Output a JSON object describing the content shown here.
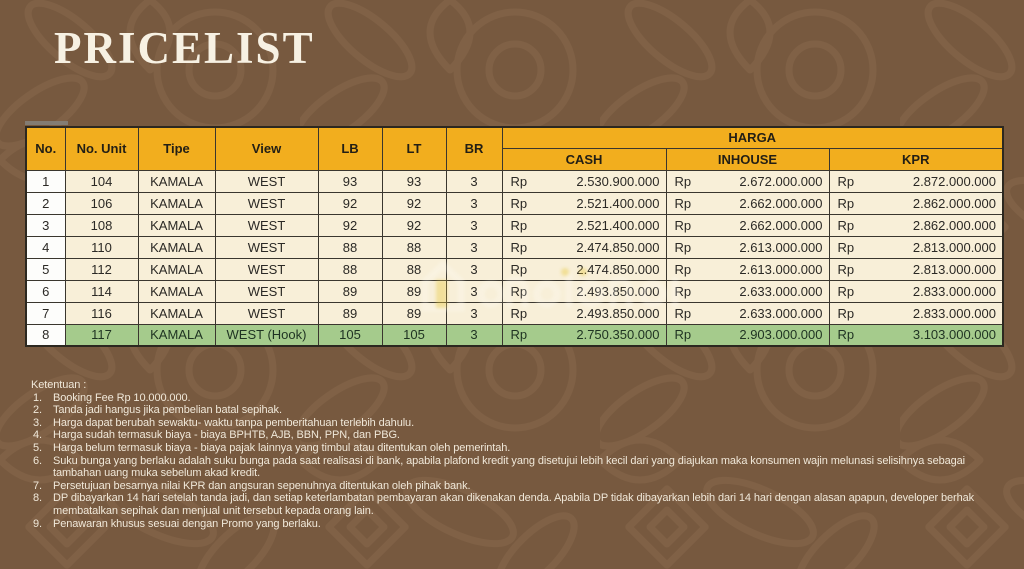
{
  "title": "PRICELIST",
  "colors": {
    "background_brown": "#77593F",
    "pattern_stroke": "#8D6D4F",
    "header_yellow": "#F2AE1E",
    "row_cream": "#F8EFD8",
    "row_white": "#FDFDFB",
    "highlight_green": "#A5CB8C",
    "table_border": "#3A362E",
    "title_text": "#F7F1E3",
    "notes_text": "#F0E8D9"
  },
  "table": {
    "headers": {
      "no": "No.",
      "no_unit": "No. Unit",
      "tipe": "Tipe",
      "view": "View",
      "lb": "LB",
      "lt": "LT",
      "br": "BR",
      "harga": "HARGA",
      "cash": "CASH",
      "inhouse": "INHOUSE",
      "kpr": "KPR"
    },
    "currency": "Rp",
    "rows": [
      {
        "no": "1",
        "unit": "104",
        "tipe": "KAMALA",
        "view": "WEST",
        "lb": "93",
        "lt": "93",
        "br": "3",
        "cash": "2.530.900.000",
        "inhouse": "2.672.000.000",
        "kpr": "2.872.000.000",
        "highlight": false
      },
      {
        "no": "2",
        "unit": "106",
        "tipe": "KAMALA",
        "view": "WEST",
        "lb": "92",
        "lt": "92",
        "br": "3",
        "cash": "2.521.400.000",
        "inhouse": "2.662.000.000",
        "kpr": "2.862.000.000",
        "highlight": false
      },
      {
        "no": "3",
        "unit": "108",
        "tipe": "KAMALA",
        "view": "WEST",
        "lb": "92",
        "lt": "92",
        "br": "3",
        "cash": "2.521.400.000",
        "inhouse": "2.662.000.000",
        "kpr": "2.862.000.000",
        "highlight": false
      },
      {
        "no": "4",
        "unit": "110",
        "tipe": "KAMALA",
        "view": "WEST",
        "lb": "88",
        "lt": "88",
        "br": "3",
        "cash": "2.474.850.000",
        "inhouse": "2.613.000.000",
        "kpr": "2.813.000.000",
        "highlight": false
      },
      {
        "no": "5",
        "unit": "112",
        "tipe": "KAMALA",
        "view": "WEST",
        "lb": "88",
        "lt": "88",
        "br": "3",
        "cash": "2.474.850.000",
        "inhouse": "2.613.000.000",
        "kpr": "2.813.000.000",
        "highlight": false
      },
      {
        "no": "6",
        "unit": "114",
        "tipe": "KAMALA",
        "view": "WEST",
        "lb": "89",
        "lt": "89",
        "br": "3",
        "cash": "2.493.850.000",
        "inhouse": "2.633.000.000",
        "kpr": "2.833.000.000",
        "highlight": false
      },
      {
        "no": "7",
        "unit": "116",
        "tipe": "KAMALA",
        "view": "WEST",
        "lb": "89",
        "lt": "89",
        "br": "3",
        "cash": "2.493.850.000",
        "inhouse": "2.633.000.000",
        "kpr": "2.833.000.000",
        "highlight": false
      },
      {
        "no": "8",
        "unit": "117",
        "tipe": "KAMALA",
        "view": "WEST (Hook)",
        "lb": "105",
        "lt": "105",
        "br": "3",
        "cash": "2.750.350.000",
        "inhouse": "2.903.000.000",
        "kpr": "3.103.000.000",
        "highlight": true
      }
    ]
  },
  "notes": {
    "heading": "Ketentuan :",
    "items": [
      "Booking Fee Rp 10.000.000.",
      "Tanda jadi hangus jika pembelian batal sepihak.",
      "Harga dapat berubah sewaktu- waktu tanpa pemberitahuan terlebih dahulu.",
      "Harga sudah termasuk biaya - biaya BPHTB, AJB, BBN, PPN, dan PBG.",
      "Harga belum termasuk biaya - biaya pajak lainnya yang timbul atau ditentukan oleh pemerintah.",
      "Suku bunga yang berlaku adalah suku bunga pada saat realisasi di bank, apabila plafond kredit yang disetujui lebih kecil dari yang diajukan maka konsumen wajin melunasi selisihnya sebagai tambahan uang muka sebelum akad kredit.",
      "Persetujuan besarnya nilai KPR dan angsuran sepenuhnya ditentukan oleh pihak bank.",
      "DP dibayarkan 14 hari setelah tanda jadi, dan setiap keterlambatan pembayaran akan dikenakan denda. Apabila DP tidak dibayarkan lebih dari 14 hari dengan alasan apapun, developer berhak membatalkan sepihak dan menjual unit tersebut kepada orang lain.",
      "Penawaran khusus sesuai dengan Promo yang berlaku."
    ]
  }
}
